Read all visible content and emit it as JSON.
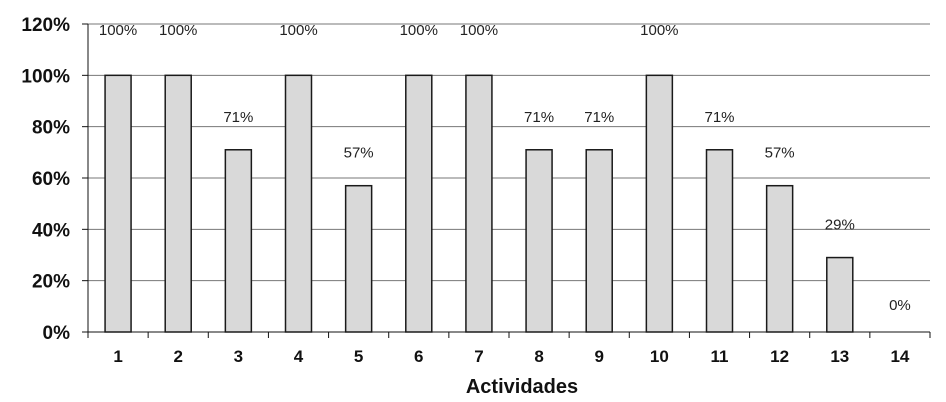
{
  "chart_data": {
    "type": "bar",
    "categories": [
      "1",
      "2",
      "3",
      "4",
      "5",
      "6",
      "7",
      "8",
      "9",
      "10",
      "11",
      "12",
      "13",
      "14"
    ],
    "values": [
      100,
      100,
      71,
      100,
      57,
      100,
      100,
      71,
      71,
      100,
      71,
      57,
      29,
      0
    ],
    "data_labels": [
      "100%",
      "100%",
      "71%",
      "100%",
      "57%",
      "100%",
      "100%",
      "71%",
      "71%",
      "100%",
      "71%",
      "57%",
      "29%",
      "0%"
    ],
    "yticks": [
      "0%",
      "20%",
      "40%",
      "60%",
      "80%",
      "100%",
      "120%"
    ],
    "ylim": [
      0,
      120
    ],
    "xlabel": "Actividades",
    "ylabel": "",
    "grid": true,
    "colors": {
      "bar_fill": "#d9d9d9",
      "bar_stroke": "#1a1a1a",
      "grid": "#777777"
    }
  }
}
